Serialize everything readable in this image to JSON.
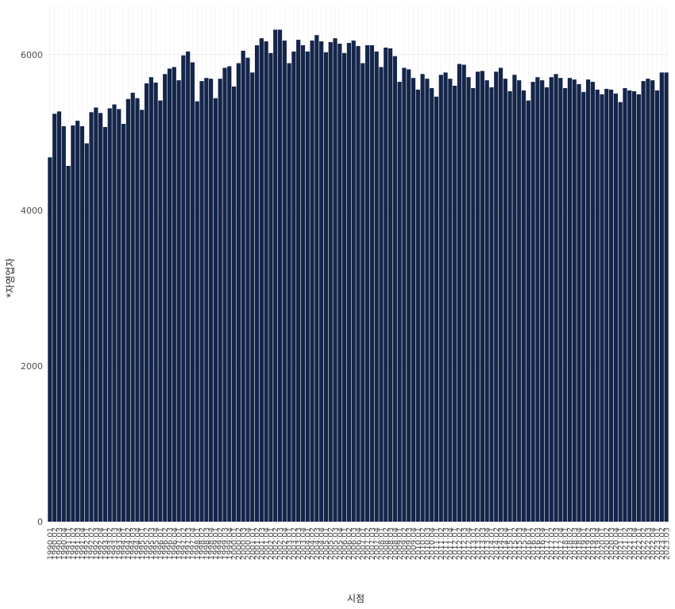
{
  "chart_data": {
    "type": "bar",
    "x_label": "시점",
    "y_label": "*자영업자",
    "categories": [
      "1990.01",
      "1990.02",
      "1990.03",
      "1990.04",
      "1991.01",
      "1991.02",
      "1991.03",
      "1991.04",
      "1992.01",
      "1992.02",
      "1992.03",
      "1992.04",
      "1993.01",
      "1993.02",
      "1993.03",
      "1993.04",
      "1994.01",
      "1994.02",
      "1994.03",
      "1994.04",
      "1995.01",
      "1995.02",
      "1995.03",
      "1995.04",
      "1996.01",
      "1996.02",
      "1996.03",
      "1996.04",
      "1997.01",
      "1997.02",
      "1997.03",
      "1997.04",
      "1998.01",
      "1998.02",
      "1998.03",
      "1998.04",
      "1999.01",
      "1999.02",
      "1999.03",
      "1999.04",
      "2000.01",
      "2000.02",
      "2000.03",
      "2000.04",
      "2001.01",
      "2001.02",
      "2001.03",
      "2001.04",
      "2002.01",
      "2002.02",
      "2002.03",
      "2002.04",
      "2003.01",
      "2003.02",
      "2003.03",
      "2003.04",
      "2004.01",
      "2004.02",
      "2004.03",
      "2004.04",
      "2005.01",
      "2005.02",
      "2005.03",
      "2005.04",
      "2006.01",
      "2006.02",
      "2006.03",
      "2006.04",
      "2007.01",
      "2007.02",
      "2007.03",
      "2007.04",
      "2008.01",
      "2008.02",
      "2008.03",
      "2008.04",
      "2009.01",
      "2009.02",
      "2009.03",
      "2009.04",
      "2010.01",
      "2010.02",
      "2010.03",
      "2010.04",
      "2011.01",
      "2011.02",
      "2011.03",
      "2011.04",
      "2012.01",
      "2012.02",
      "2012.03",
      "2012.04",
      "2013.01",
      "2013.02",
      "2013.03",
      "2013.04",
      "2014.01",
      "2014.02",
      "2014.03",
      "2014.04",
      "2015.01",
      "2015.02",
      "2015.03",
      "2015.04",
      "2016.01",
      "2016.02",
      "2016.03",
      "2016.04",
      "2017.01",
      "2017.02",
      "2017.03",
      "2017.04",
      "2018.01",
      "2018.02",
      "2018.03",
      "2018.04",
      "2019.01",
      "2019.02",
      "2019.03",
      "2019.04",
      "2020.01",
      "2020.02",
      "2020.03",
      "2020.04",
      "2021.01",
      "2021.02",
      "2021.03",
      "2021.04",
      "2022.01",
      "2022.02",
      "2022.03",
      "2022.04",
      "2023.01",
      "2023.02",
      "2023.03"
    ],
    "values": [
      4680,
      5240,
      5270,
      5080,
      4570,
      5090,
      5150,
      5080,
      4860,
      5260,
      5320,
      5250,
      5070,
      5310,
      5360,
      5300,
      5110,
      5430,
      5510,
      5440,
      5290,
      5630,
      5710,
      5640,
      5410,
      5750,
      5820,
      5840,
      5670,
      5990,
      6040,
      5900,
      5400,
      5660,
      5700,
      5690,
      5440,
      5690,
      5830,
      5850,
      5590,
      5890,
      6050,
      5960,
      5770,
      6120,
      6210,
      6170,
      6020,
      6320,
      6320,
      6180,
      5890,
      6040,
      6190,
      6120,
      6040,
      6180,
      6250,
      6170,
      6030,
      6160,
      6210,
      6140,
      6020,
      6150,
      6180,
      6110,
      5890,
      6120,
      6120,
      6040,
      5840,
      6090,
      6080,
      5980,
      5650,
      5830,
      5810,
      5700,
      5550,
      5750,
      5690,
      5570,
      5460,
      5740,
      5770,
      5690,
      5600,
      5880,
      5870,
      5710,
      5570,
      5780,
      5790,
      5670,
      5580,
      5780,
      5830,
      5690,
      5530,
      5740,
      5670,
      5540,
      5410,
      5650,
      5710,
      5670,
      5580,
      5710,
      5750,
      5700,
      5570,
      5700,
      5680,
      5620,
      5520,
      5680,
      5650,
      5550,
      5490,
      5560,
      5550,
      5500,
      5390,
      5570,
      5540,
      5530,
      5490,
      5660,
      5690,
      5670,
      5540,
      5770,
      5770
    ],
    "color": "#14254a",
    "ylim": [
      0,
      6630
    ],
    "yticks": [
      0,
      2000,
      4000,
      6000
    ],
    "grid": true
  }
}
